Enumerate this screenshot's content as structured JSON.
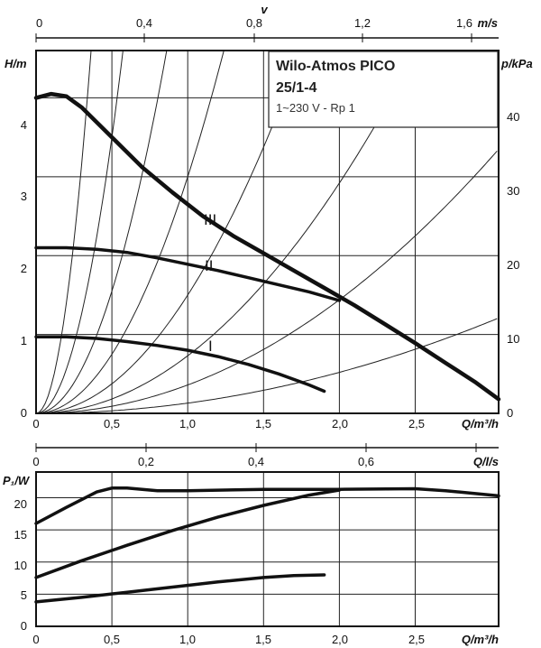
{
  "title_box": {
    "line1": "Wilo-Atmos PICO",
    "line2": "25/1-4",
    "line3": "1~230 V - Rp 1"
  },
  "axes": {
    "top_v_label": "v",
    "top_v_unit": "m/s",
    "top_v_ticks": [
      "0",
      "0,4",
      "0,8",
      "1,2",
      "1,6"
    ],
    "h_label": "H/m",
    "h_ticks": [
      "0",
      "1",
      "2",
      "3",
      "4"
    ],
    "p_label": "p/kPa",
    "p_ticks": [
      "0",
      "10",
      "20",
      "30",
      "40"
    ],
    "q_label": "Q/m³/h",
    "q_ticks": [
      "0",
      "0,5",
      "1,0",
      "1,5",
      "2,0",
      "2,5"
    ],
    "ql_label": "Q/l/s",
    "ql_ticks": [
      "0",
      "0,2",
      "0,4",
      "0,6"
    ],
    "p1_label": "P₁/W",
    "p1_ticks": [
      "0",
      "5",
      "10",
      "15",
      "20"
    ],
    "q2_label": "Q/m³/h",
    "q2_ticks": [
      "0",
      "0,5",
      "1,0",
      "1,5",
      "2,0",
      "2,5"
    ]
  },
  "chart_data": [
    {
      "type": "line",
      "title": "Wilo-Atmos PICO 25/1-4",
      "xlabel": "Q/m³/h",
      "ylabel": "H/m",
      "secondary_ylabel": "p/kPa",
      "secondary_xlabel": "v m/s",
      "xlim": [
        0,
        3.05
      ],
      "ylim": [
        0,
        4.6
      ],
      "grid": true,
      "series": [
        {
          "name": "III",
          "x": [
            0,
            0.1,
            0.2,
            0.3,
            0.5,
            0.7,
            0.9,
            1.1,
            1.3,
            1.5,
            1.7,
            1.9,
            2.1,
            2.3,
            2.5,
            2.7,
            2.9,
            3.05
          ],
          "y": [
            4.0,
            4.05,
            4.02,
            3.88,
            3.5,
            3.12,
            2.8,
            2.5,
            2.25,
            2.03,
            1.81,
            1.59,
            1.37,
            1.13,
            0.89,
            0.64,
            0.39,
            0.18
          ]
        },
        {
          "name": "II",
          "x": [
            0,
            0.2,
            0.4,
            0.6,
            0.8,
            1.0,
            1.2,
            1.4,
            1.6,
            1.8,
            2.0
          ],
          "y": [
            2.1,
            2.1,
            2.08,
            2.04,
            1.97,
            1.89,
            1.81,
            1.72,
            1.63,
            1.54,
            1.43
          ]
        },
        {
          "name": "I",
          "x": [
            0,
            0.2,
            0.4,
            0.6,
            0.8,
            1.0,
            1.2,
            1.4,
            1.6,
            1.8,
            1.9
          ],
          "y": [
            0.97,
            0.97,
            0.95,
            0.91,
            0.86,
            0.8,
            0.72,
            0.62,
            0.5,
            0.36,
            0.28
          ]
        }
      ],
      "system_curve_coefficients": [
        35,
        14,
        6.2,
        3,
        1.5,
        0.73,
        0.36,
        0.13
      ]
    },
    {
      "type": "line",
      "xlabel": "Q/m³/h",
      "ylabel": "P₁/W",
      "secondary_xlabel": "Q/l/s",
      "xlim": [
        0,
        3.05
      ],
      "ylim": [
        0,
        24
      ],
      "grid": true,
      "series": [
        {
          "x": [
            0,
            0.2,
            0.4,
            0.5,
            0.6,
            0.8,
            1.0,
            1.5,
            2.0,
            2.5,
            2.7,
            3.05
          ],
          "y": [
            16,
            18.5,
            20.9,
            21.5,
            21.5,
            21.1,
            21.1,
            21.3,
            21.3,
            21.4,
            21.1,
            20.3
          ]
        },
        {
          "x": [
            0,
            0.3,
            0.6,
            0.9,
            1.2,
            1.5,
            1.8,
            2.0
          ],
          "y": [
            7.6,
            10.2,
            12.6,
            14.9,
            17.0,
            18.8,
            20.4,
            21.2
          ]
        },
        {
          "x": [
            0,
            0.3,
            0.6,
            0.9,
            1.2,
            1.5,
            1.7,
            1.9
          ],
          "y": [
            3.8,
            4.5,
            5.3,
            6.1,
            6.9,
            7.6,
            7.9,
            8.0
          ]
        }
      ]
    }
  ]
}
